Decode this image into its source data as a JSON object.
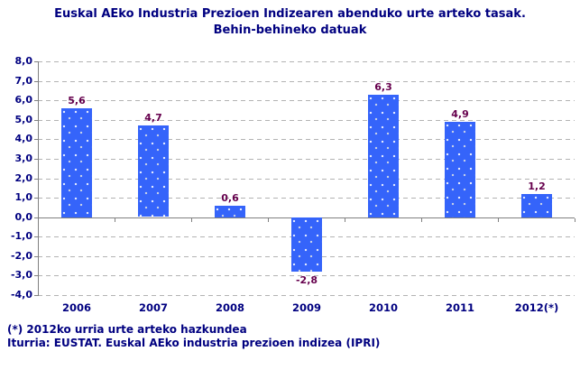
{
  "title": {
    "line1": "Euskal AEko Industria Prezioen Indizearen abenduko urte arteko tasak.",
    "line2": "Behin-behineko datuak"
  },
  "footnotes": {
    "line1": "(*) 2012ko urria urte arteko hazkundea",
    "line2": "Iturria: EUSTAT. Euskal AEko industria prezioen indizea (IPRI)"
  },
  "colors": {
    "bar_fill": "#3564FA",
    "bar_speckle": "#FFFFFF",
    "title_text": "#000080",
    "axis_label_text": "#000080",
    "data_label_text": "#66004D",
    "gridline": "#B3B3B3",
    "axis_line": "#808080",
    "background": "#FFFFFF"
  },
  "chart_data": {
    "type": "bar",
    "title": "Euskal AEko Industria Prezioen Indizearen abenduko urte arteko tasak. Behin-behineko datuak",
    "categories": [
      "2006",
      "2007",
      "2008",
      "2009",
      "2010",
      "2011",
      "2012(*)"
    ],
    "values": [
      5.6,
      4.7,
      0.6,
      -2.8,
      6.3,
      4.9,
      1.2
    ],
    "value_labels": [
      "5,6",
      "4,7",
      "0,6",
      "-2,8",
      "6,3",
      "4,9",
      "1,2"
    ],
    "xlabel": "",
    "ylabel": "",
    "ylim": [
      -4.0,
      8.0
    ],
    "ytick_step": 1.0,
    "ytick_labels": [
      "8,0",
      "7,0",
      "6,0",
      "5,0",
      "4,0",
      "3,0",
      "2,0",
      "1,0",
      "0,0",
      "-1,0",
      "-2,0",
      "-3,0",
      "-4,0"
    ],
    "grid": "horizontal-dashed",
    "legend": "none"
  }
}
